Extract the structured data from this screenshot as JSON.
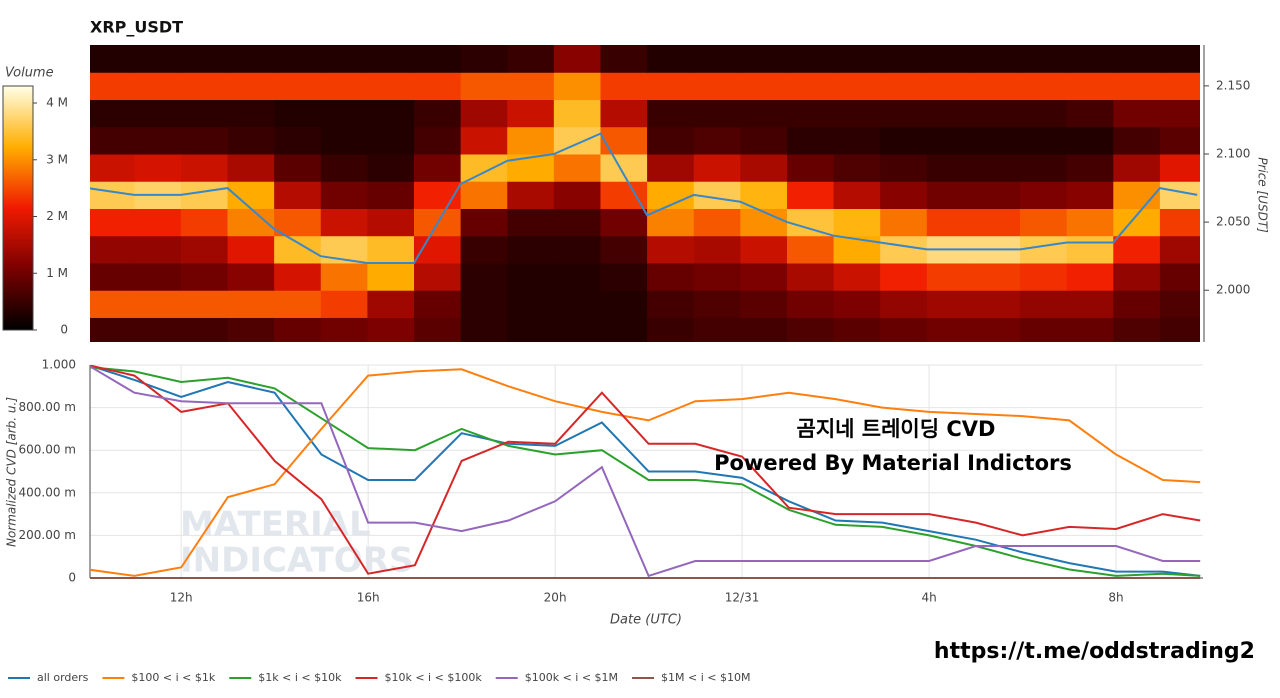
{
  "chart_data": [
    {
      "type": "heatmap",
      "title": "XRP_USDT",
      "y_label": "Price [USDT]",
      "colorbar_label": "Volume",
      "xlim": [
        10.05,
        33.86
      ],
      "ylim": [
        1.962,
        2.18
      ],
      "yticks": [
        {
          "value": 2.0,
          "label": "2.000"
        },
        {
          "value": 2.05,
          "label": "2.050"
        },
        {
          "value": 2.1,
          "label": "2.100"
        },
        {
          "value": 2.15,
          "label": "2.150"
        }
      ],
      "zlim": [
        0,
        4.3
      ],
      "zticks": [
        0,
        {
          "value": 1,
          "label": "1 M"
        },
        {
          "value": 2,
          "label": "2 M"
        },
        {
          "value": 3,
          "label": "3 M"
        },
        {
          "value": 4,
          "label": "4 M"
        }
      ],
      "colorscale": [
        "#000000",
        "#7a0000",
        "#f01a00",
        "#ffae00",
        "#ffffe8"
      ],
      "x": [
        10.5,
        11.5,
        12.5,
        13.5,
        14.5,
        15.5,
        16.5,
        17.5,
        18.5,
        19.5,
        20.5,
        21.5,
        22.5,
        23.5,
        24.5,
        25.5,
        26.5,
        27.5,
        28.5,
        29.5,
        30.5,
        31.5,
        32.5,
        33.5
      ],
      "y": [
        1.97,
        1.99,
        2.01,
        2.03,
        2.05,
        2.07,
        2.09,
        2.11,
        2.13,
        2.15,
        2.17
      ],
      "z": [
        [
          0.6,
          0.6,
          0.6,
          0.7,
          0.9,
          1.0,
          1.1,
          0.8,
          0.4,
          0.3,
          0.3,
          0.3,
          0.5,
          0.6,
          0.6,
          0.7,
          0.8,
          0.9,
          1.0,
          1.0,
          0.9,
          0.9,
          0.7,
          0.6
        ],
        [
          2.6,
          2.6,
          2.6,
          2.6,
          2.6,
          2.4,
          1.4,
          0.9,
          0.4,
          0.3,
          0.3,
          0.3,
          0.6,
          0.7,
          0.8,
          1.0,
          1.1,
          1.3,
          1.4,
          1.4,
          1.3,
          1.3,
          0.9,
          0.7
        ],
        [
          0.9,
          0.9,
          1.0,
          1.2,
          1.9,
          2.8,
          3.2,
          1.6,
          0.4,
          0.3,
          0.3,
          0.4,
          0.9,
          1.0,
          1.1,
          1.5,
          1.8,
          2.2,
          2.4,
          2.4,
          2.3,
          2.2,
          1.3,
          0.9
        ],
        [
          1.3,
          1.3,
          1.4,
          2.0,
          3.4,
          3.6,
          3.4,
          2.0,
          0.5,
          0.4,
          0.4,
          0.6,
          1.6,
          1.5,
          1.8,
          2.6,
          3.2,
          3.6,
          3.8,
          3.8,
          3.6,
          3.5,
          2.2,
          1.4
        ],
        [
          2.2,
          2.2,
          2.4,
          2.9,
          2.6,
          1.8,
          1.6,
          2.6,
          0.9,
          0.6,
          0.6,
          1.0,
          2.9,
          2.6,
          3.0,
          3.5,
          3.3,
          2.8,
          2.4,
          2.4,
          2.6,
          2.8,
          3.2,
          2.4
        ],
        [
          3.6,
          3.7,
          3.6,
          3.2,
          1.6,
          1.0,
          0.9,
          2.2,
          2.8,
          1.5,
          1.2,
          2.4,
          3.2,
          3.6,
          3.3,
          2.2,
          1.6,
          1.2,
          1.0,
          1.0,
          1.1,
          1.2,
          3.0,
          3.7
        ],
        [
          1.8,
          1.9,
          1.8,
          1.5,
          0.8,
          0.5,
          0.4,
          1.0,
          3.4,
          3.2,
          2.8,
          3.6,
          1.4,
          1.8,
          1.5,
          0.9,
          0.7,
          0.6,
          0.5,
          0.5,
          0.5,
          0.6,
          1.4,
          2.0
        ],
        [
          0.6,
          0.6,
          0.6,
          0.5,
          0.4,
          0.3,
          0.3,
          0.6,
          1.8,
          3.0,
          3.6,
          2.6,
          0.6,
          0.7,
          0.6,
          0.4,
          0.4,
          0.3,
          0.3,
          0.3,
          0.3,
          0.3,
          0.6,
          0.8
        ],
        [
          0.4,
          0.4,
          0.4,
          0.4,
          0.3,
          0.3,
          0.3,
          0.5,
          1.4,
          1.8,
          3.4,
          1.6,
          0.5,
          0.5,
          0.5,
          0.5,
          0.5,
          0.5,
          0.5,
          0.5,
          0.5,
          0.6,
          1.0,
          1.0
        ],
        [
          2.4,
          2.4,
          2.4,
          2.4,
          2.4,
          2.4,
          2.4,
          2.4,
          2.6,
          2.6,
          3.0,
          2.4,
          2.4,
          2.4,
          2.4,
          2.4,
          2.4,
          2.4,
          2.4,
          2.4,
          2.4,
          2.4,
          2.4,
          2.4
        ],
        [
          0.3,
          0.3,
          0.3,
          0.3,
          0.3,
          0.3,
          0.3,
          0.3,
          0.4,
          0.5,
          1.2,
          0.5,
          0.3,
          0.3,
          0.3,
          0.3,
          0.3,
          0.3,
          0.3,
          0.3,
          0.3,
          0.3,
          0.3,
          0.3
        ]
      ],
      "overlay": {
        "color": "#3a87c8",
        "x": [
          10,
          11,
          12,
          13,
          14,
          15,
          16,
          17,
          18,
          19,
          20,
          21,
          22,
          23,
          24,
          25,
          26,
          27,
          28,
          29,
          30,
          31,
          32,
          33,
          33.8
        ],
        "values": [
          2.075,
          2.07,
          2.07,
          2.075,
          2.045,
          2.025,
          2.02,
          2.02,
          2.078,
          2.095,
          2.1,
          2.115,
          2.055,
          2.07,
          2.065,
          2.05,
          2.04,
          2.035,
          2.03,
          2.03,
          2.03,
          2.035,
          2.035,
          2.075,
          2.07
        ]
      }
    },
    {
      "type": "line",
      "x_label": "Date (UTC)",
      "y_label": "Normalized CVD [arb. u.]",
      "grid": true,
      "legend": "bottom",
      "xlim": [
        10.05,
        33.86
      ],
      "ylim": [
        0,
        1.0
      ],
      "xticks": [
        {
          "value": 12,
          "label": "12h"
        },
        {
          "value": 16,
          "label": "16h"
        },
        {
          "value": 20,
          "label": "20h"
        },
        {
          "value": 24,
          "label": "12/31"
        },
        {
          "value": 28,
          "label": "4h"
        },
        {
          "value": 32,
          "label": "8h"
        }
      ],
      "yticks": [
        0,
        {
          "value": 0.2,
          "label": "200.00 m"
        },
        {
          "value": 0.4,
          "label": "400.00 m"
        },
        {
          "value": 0.6,
          "label": "600.00 m"
        },
        {
          "value": 0.8,
          "label": "800.00 m"
        },
        {
          "value": 1.0,
          "label": "1.000"
        }
      ],
      "x": [
        10,
        11,
        12,
        13,
        14,
        15,
        16,
        17,
        18,
        19,
        20,
        21,
        22,
        23,
        24,
        25,
        26,
        27,
        28,
        29,
        30,
        31,
        32,
        33,
        33.8
      ],
      "series": [
        {
          "name": "all orders",
          "color": "#1f77b4",
          "values": [
            1.0,
            0.93,
            0.85,
            0.92,
            0.87,
            0.58,
            0.46,
            0.46,
            0.68,
            0.63,
            0.62,
            0.73,
            0.5,
            0.5,
            0.47,
            0.36,
            0.27,
            0.26,
            0.22,
            0.18,
            0.12,
            0.07,
            0.03,
            0.03,
            0.01
          ]
        },
        {
          "name": "$100 < i < $1k",
          "color": "#ff7f0e",
          "values": [
            0.04,
            0.01,
            0.05,
            0.38,
            0.44,
            0.7,
            0.95,
            0.97,
            0.98,
            0.9,
            0.83,
            0.78,
            0.74,
            0.83,
            0.84,
            0.87,
            0.84,
            0.8,
            0.78,
            0.77,
            0.76,
            0.74,
            0.58,
            0.46,
            0.45
          ]
        },
        {
          "name": "$1k < i < $10k",
          "color": "#2ca02c",
          "values": [
            0.99,
            0.97,
            0.92,
            0.94,
            0.89,
            0.75,
            0.61,
            0.6,
            0.7,
            0.62,
            0.58,
            0.6,
            0.46,
            0.46,
            0.44,
            0.32,
            0.25,
            0.24,
            0.2,
            0.15,
            0.09,
            0.04,
            0.01,
            0.02,
            0.01
          ]
        },
        {
          "name": "$10k < i < $100k",
          "color": "#d62728",
          "values": [
            1.0,
            0.95,
            0.78,
            0.82,
            0.55,
            0.37,
            0.02,
            0.06,
            0.55,
            0.64,
            0.63,
            0.87,
            0.63,
            0.63,
            0.57,
            0.33,
            0.3,
            0.3,
            0.3,
            0.26,
            0.2,
            0.24,
            0.23,
            0.3,
            0.27
          ]
        },
        {
          "name": "$100k < i < $1M",
          "color": "#9467bd",
          "values": [
            1.0,
            0.87,
            0.83,
            0.82,
            0.82,
            0.82,
            0.26,
            0.26,
            0.22,
            0.27,
            0.36,
            0.52,
            0.01,
            0.08,
            0.08,
            0.08,
            0.08,
            0.08,
            0.08,
            0.15,
            0.15,
            0.15,
            0.15,
            0.08,
            0.08
          ]
        },
        {
          "name": "$1M < i < $10M",
          "color": "#8c564b",
          "values": [
            0,
            0,
            0,
            0,
            0,
            0,
            0,
            0,
            0,
            0,
            0,
            0,
            0,
            0,
            0,
            0,
            0,
            0,
            0,
            0,
            0,
            0,
            0,
            0,
            0
          ]
        }
      ],
      "annotations": [
        "곰지네 트레이딩 CVD",
        "Powered By Material Indictors"
      ],
      "watermark": [
        "MATERIAL",
        "INDICATORS"
      ]
    }
  ],
  "footer": "https://t.me/oddstrading2"
}
